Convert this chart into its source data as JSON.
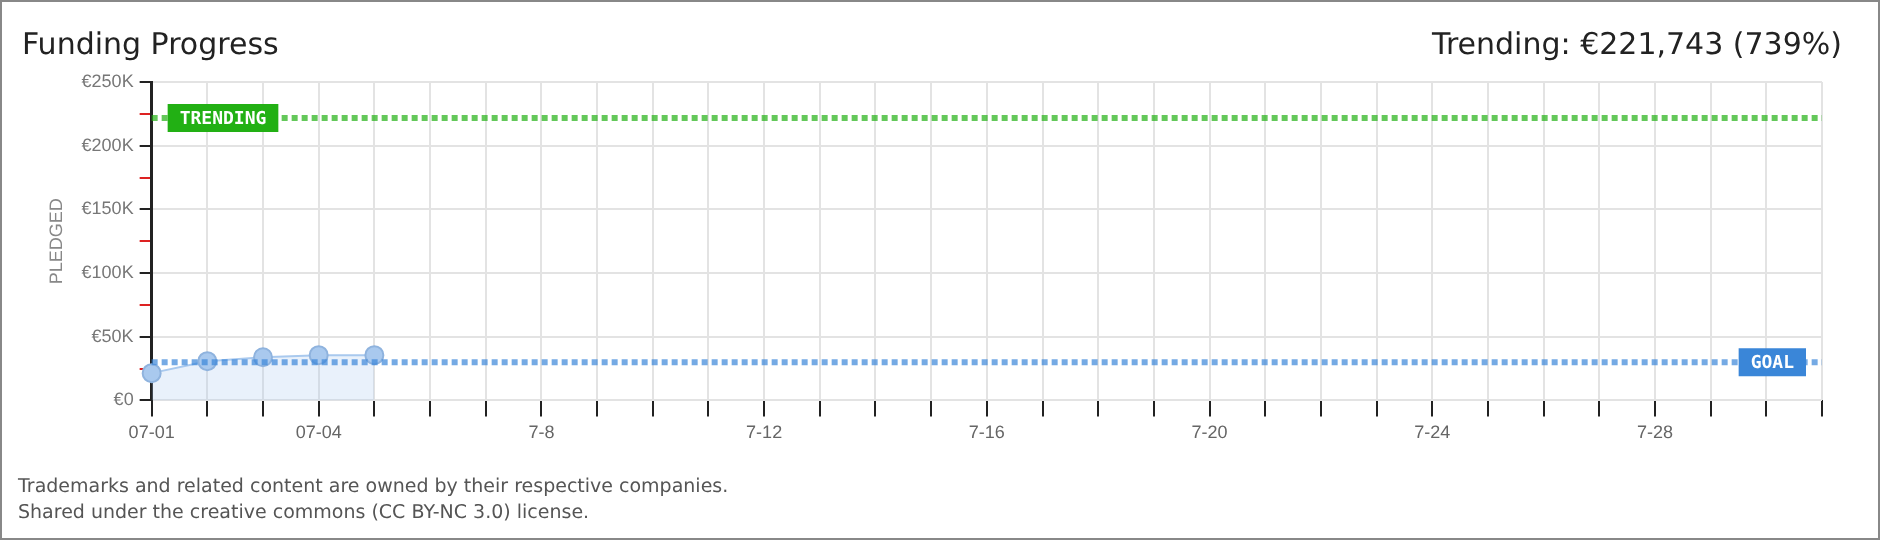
{
  "chart_data": {
    "type": "area",
    "title": "Funding Progress",
    "subtitle": "Trending: €221,743 (739%)",
    "ylabel": "PLEDGED",
    "categories": [
      "07-01",
      null,
      null,
      "07-04",
      null,
      null,
      null,
      "7-8",
      null,
      null,
      null,
      "7-12",
      null,
      null,
      null,
      "7-16",
      null,
      null,
      null,
      "7-20",
      null,
      null,
      null,
      "7-24",
      null,
      null,
      null,
      "7-28",
      null,
      null,
      null
    ],
    "series": [
      {
        "color": "#a9c9ee",
        "values": [
          21400,
          30800,
          33900,
          35500,
          35500,
          null,
          null,
          null,
          null,
          null,
          null,
          null,
          null,
          null,
          null,
          null,
          null,
          null,
          null,
          null,
          null,
          null,
          null,
          null,
          null,
          null,
          null,
          null,
          null,
          null,
          null
        ]
      }
    ],
    "ylim": [
      0,
      250000
    ],
    "yticks": [
      {
        "value": 0,
        "label": "€0"
      },
      {
        "value": 25000,
        "label": null
      },
      {
        "value": 50000,
        "label": "€50K"
      },
      {
        "value": 75000,
        "label": null
      },
      {
        "value": 100000,
        "label": "€100K"
      },
      {
        "value": 125000,
        "label": null
      },
      {
        "value": 150000,
        "label": "€150K"
      },
      {
        "value": 175000,
        "label": null
      },
      {
        "value": 200000,
        "label": "€200K"
      },
      {
        "value": 225000,
        "label": null
      },
      {
        "value": 250000,
        "label": "€250K"
      }
    ],
    "ref_lines": [
      {
        "axis": "y",
        "value": 221743,
        "label": "TRENDING",
        "color": "#22b014",
        "line_style": "dotted"
      },
      {
        "axis": "y",
        "value": 30000,
        "label": "GOAL",
        "color": "#3a86d8",
        "line_style": "dotted"
      }
    ],
    "annotations": [
      "Trademarks and related content are owned by their respective companies.",
      "Shared under the creative commons (CC BY-NC 3.0) license."
    ],
    "grid": true,
    "legend": false,
    "marker": "circle"
  }
}
